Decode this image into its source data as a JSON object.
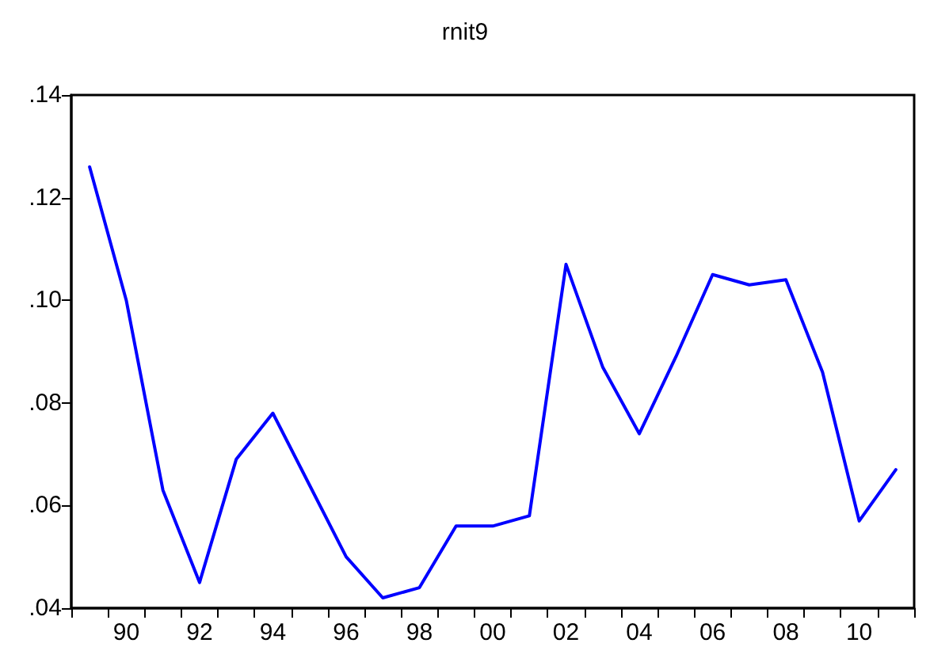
{
  "chart_data": {
    "type": "line",
    "title": "rnit9",
    "categories": [
      null,
      "90",
      null,
      "92",
      null,
      "94",
      null,
      "96",
      null,
      "98",
      null,
      "00",
      null,
      "02",
      null,
      "04",
      null,
      "06",
      null,
      "08",
      null,
      "10",
      null
    ],
    "series": [
      {
        "color": "#0000ff",
        "values": [
          0.126,
          0.1,
          0.063,
          0.045,
          0.069,
          0.078,
          0.064,
          0.05,
          0.042,
          0.044,
          0.056,
          0.056,
          0.058,
          0.107,
          0.087,
          0.074,
          0.089,
          0.105,
          0.103,
          0.104,
          0.086,
          0.057,
          0.067
        ]
      }
    ],
    "ylim": [
      0.04,
      0.14
    ],
    "yticks": [
      {
        "value": 0.04,
        "label": ".04"
      },
      {
        "value": 0.06,
        "label": ".06"
      },
      {
        "value": 0.08,
        "label": ".08"
      },
      {
        "value": 0.1,
        "label": ".10"
      },
      {
        "value": 0.12,
        "label": ".12"
      },
      {
        "value": 0.14,
        "label": ".14"
      }
    ],
    "grid": false,
    "marker": "none",
    "line_style": "solid"
  }
}
